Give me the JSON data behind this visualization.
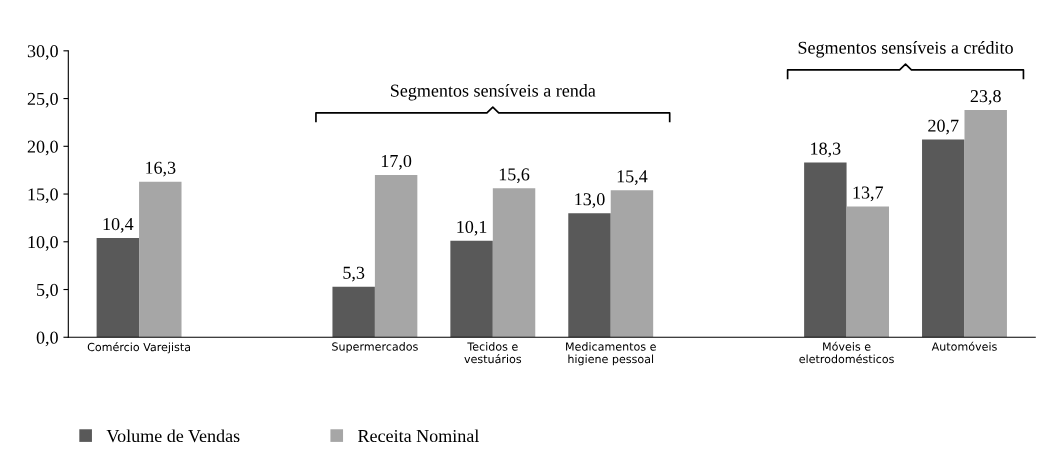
{
  "chart_data": {
    "type": "bar",
    "categories": [
      "Comércio Varejista",
      null,
      "Supermercados",
      "Tecidos e\nvestuários",
      "Medicamentos e\nhigiene pessoal",
      null,
      "Móveis e\neletrodomésticos",
      "Automóveis"
    ],
    "series": [
      {
        "name": "Volume de Vendas",
        "color": "#595959",
        "values": [
          10.4,
          null,
          5.3,
          10.1,
          13.0,
          null,
          18.3,
          20.7
        ],
        "value_labels": [
          "10,4",
          null,
          "5,3",
          "10,1",
          "13,0",
          null,
          "18,3",
          "20,7"
        ]
      },
      {
        "name": "Receita Nominal",
        "color": "#a6a6a6",
        "values": [
          16.3,
          null,
          17.0,
          15.6,
          15.4,
          null,
          13.7,
          23.8
        ],
        "value_labels": [
          "16,3",
          null,
          "17,0",
          "15,6",
          "15,4",
          null,
          "13,7",
          "23,8"
        ]
      }
    ],
    "ylim": [
      0,
      30
    ],
    "yticks": [
      {
        "value": 0,
        "label": "0,0"
      },
      {
        "value": 5,
        "label": "5,0"
      },
      {
        "value": 10,
        "label": "10,0"
      },
      {
        "value": 15,
        "label": "15,0"
      },
      {
        "value": 20,
        "label": "20,0"
      },
      {
        "value": 25,
        "label": "25,0"
      },
      {
        "value": 30,
        "label": "30,0"
      }
    ],
    "annotations": [
      "Segmentos sensíveis a renda",
      "Segmentos sensíveis a crédito"
    ],
    "grid": false,
    "legend": "bottom left"
  }
}
